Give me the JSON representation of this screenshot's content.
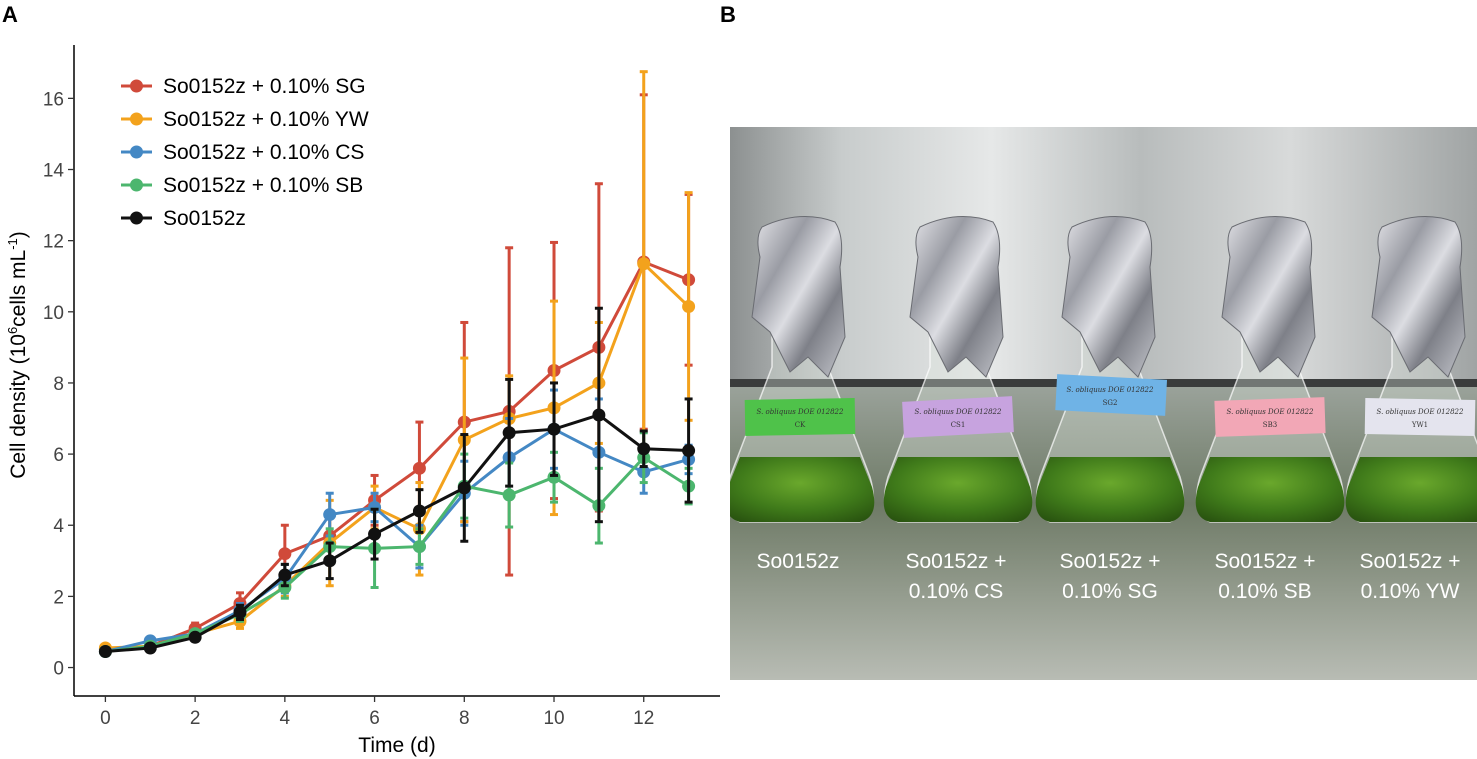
{
  "panel_a_label": "A",
  "panel_b_label": "B",
  "chart_data": {
    "type": "line",
    "xlabel": "Time (d)",
    "ylabel": "Cell density (10",
    "ylabel_sup": "6",
    "ylabel_mid": "cells mL",
    "ylabel_sup2": "-1",
    "ylabel_end": ")",
    "xlim": [
      -0.7,
      13.7
    ],
    "ylim": [
      -0.8,
      17.5
    ],
    "xticks": [
      0,
      2,
      4,
      6,
      8,
      10,
      12
    ],
    "yticks": [
      0,
      2,
      4,
      6,
      8,
      10,
      12,
      14,
      16
    ],
    "grid": false,
    "legend_position": "top-left",
    "x": [
      0,
      1,
      2,
      3,
      4,
      5,
      6,
      7,
      8,
      9,
      10,
      11,
      12,
      13
    ],
    "series": [
      {
        "name": "So0152z + 0.10% SG",
        "color": "#d04a3a",
        "values": [
          0.5,
          0.6,
          1.1,
          1.8,
          3.2,
          3.7,
          4.7,
          5.6,
          6.9,
          7.2,
          8.35,
          9.0,
          11.4,
          10.9
        ],
        "err": [
          0.05,
          0.05,
          0.15,
          0.3,
          0.8,
          0.6,
          0.7,
          1.3,
          2.8,
          4.6,
          3.6,
          4.6,
          4.7,
          2.4
        ]
      },
      {
        "name": "So0152z + 0.10% YW",
        "color": "#f3a21c",
        "values": [
          0.55,
          0.6,
          0.95,
          1.3,
          2.3,
          3.5,
          4.5,
          3.9,
          6.4,
          7.0,
          7.3,
          8.0,
          11.35,
          10.15
        ],
        "err": [
          0.05,
          0.05,
          0.1,
          0.2,
          0.3,
          1.2,
          0.6,
          1.3,
          2.3,
          1.2,
          3.0,
          1.7,
          5.4,
          3.2
        ]
      },
      {
        "name": "So0152z + 0.10% CS",
        "color": "#4488c4",
        "values": [
          0.45,
          0.75,
          0.95,
          1.6,
          2.5,
          4.3,
          4.5,
          3.4,
          4.9,
          5.9,
          6.7,
          6.05,
          5.5,
          5.85
        ],
        "err": [
          0.05,
          0.05,
          0.1,
          0.2,
          0.4,
          0.6,
          0.4,
          0.6,
          0.9,
          1.1,
          1.1,
          1.5,
          0.6,
          0.4
        ]
      },
      {
        "name": "So0152z + 0.10% SB",
        "color": "#4cb66e",
        "values": [
          0.45,
          0.6,
          0.95,
          1.5,
          2.25,
          3.4,
          3.35,
          3.4,
          5.1,
          4.85,
          5.35,
          4.55,
          5.9,
          5.1
        ],
        "err": [
          0.05,
          0.05,
          0.1,
          0.2,
          0.3,
          0.5,
          1.1,
          0.5,
          0.9,
          0.9,
          0.7,
          1.05,
          0.7,
          0.5
        ]
      },
      {
        "name": "So0152z",
        "color": "#111111",
        "values": [
          0.45,
          0.55,
          0.85,
          1.55,
          2.6,
          3.0,
          3.75,
          4.4,
          5.05,
          6.6,
          6.7,
          7.1,
          6.15,
          6.1
        ],
        "err": [
          0.05,
          0.05,
          0.1,
          0.2,
          0.3,
          0.5,
          0.7,
          0.6,
          1.5,
          1.5,
          1.3,
          3.0,
          0.5,
          1.45
        ]
      }
    ]
  },
  "photo": {
    "flasks": [
      {
        "label_line1": "So0152z",
        "label_line2": "",
        "tag_color": "#4fc24a",
        "tag_text": "S. obliquus DOE 012822",
        "tag_sub": "CK"
      },
      {
        "label_line1": "So0152z +",
        "label_line2": "0.10% CS",
        "tag_color": "#c7a3df",
        "tag_text": "S. obliquus DOE 012822",
        "tag_sub": "CS1"
      },
      {
        "label_line1": "So0152z +",
        "label_line2": "0.10% SG",
        "tag_color": "#6fb3e6",
        "tag_text": "S. obliquus DOE 012822",
        "tag_sub": "SG2"
      },
      {
        "label_line1": "So0152z +",
        "label_line2": "0.10% SB",
        "tag_color": "#f2a7b6",
        "tag_text": "S. obliquus DOE 012822",
        "tag_sub": "SB3"
      },
      {
        "label_line1": "So0152z +",
        "label_line2": "0.10% YW",
        "tag_color": "#e4e4ee",
        "tag_text": "S. obliquus DOE 012822",
        "tag_sub": "YW1"
      }
    ]
  }
}
